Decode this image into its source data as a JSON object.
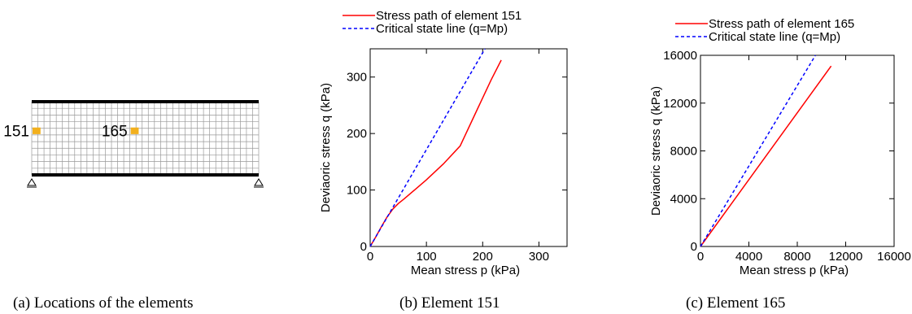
{
  "panel_a": {
    "caption": "(a) Locations of the elements",
    "mesh": {
      "columns": 37,
      "rows": 11
    },
    "elements": [
      {
        "label": "151",
        "col": 0,
        "row": 4
      },
      {
        "label": "165",
        "col": 16,
        "row": 4
      }
    ],
    "element_color": "#f2b01e"
  },
  "chart_data": [
    {
      "type": "line",
      "caption": "(b) Element 151",
      "xlabel": "Mean stress p (kPa)",
      "ylabel": "Deviaoric stress q (kPa)",
      "xlim": [
        0,
        350
      ],
      "ylim": [
        0,
        350
      ],
      "xticks": [
        0,
        100,
        200,
        300
      ],
      "yticks": [
        0,
        100,
        200,
        300
      ],
      "xtick_labels": [
        "0",
        "100",
        "200",
        "300"
      ],
      "ytick_labels": [
        "0",
        "100",
        "200",
        "300"
      ],
      "legend_position": "top",
      "series": [
        {
          "name": "Stress path of element 151",
          "color": "#ff0000",
          "dash": "solid",
          "x": [
            0,
            10,
            20,
            30,
            40,
            50,
            60,
            80,
            100,
            130,
            160,
            190,
            215,
            233
          ],
          "y": [
            0,
            17,
            35,
            52,
            66,
            76,
            84,
            101,
            118,
            146,
            178,
            242,
            295,
            330
          ]
        },
        {
          "name": "Critical state line (q=Mp)",
          "color": "#0000ff",
          "dash": "dashed",
          "x": [
            0,
            204
          ],
          "y": [
            0,
            350
          ]
        }
      ]
    },
    {
      "type": "line",
      "caption": "(c) Element 165",
      "xlabel": "Mean stress p (kPa)",
      "ylabel": "Deviaoric stress q (kPa)",
      "xlim": [
        0,
        16000
      ],
      "ylim": [
        0,
        16000
      ],
      "xticks": [
        0,
        4000,
        8000,
        12000,
        16000
      ],
      "yticks": [
        0,
        4000,
        8000,
        12000,
        16000
      ],
      "xtick_labels": [
        "0",
        "4000",
        "8000",
        "12000",
        "16000"
      ],
      "ytick_labels": [
        "0",
        "4000",
        "8000",
        "12000",
        "16000"
      ],
      "legend_position": "top",
      "series": [
        {
          "name": "Stress path of element 165",
          "color": "#ff0000",
          "dash": "solid",
          "x": [
            0,
            10800
          ],
          "y": [
            0,
            15100
          ]
        },
        {
          "name": "Critical state line (q=Mp)",
          "color": "#0000ff",
          "dash": "dashed",
          "x": [
            0,
            9500
          ],
          "y": [
            0,
            16000
          ]
        }
      ]
    }
  ]
}
